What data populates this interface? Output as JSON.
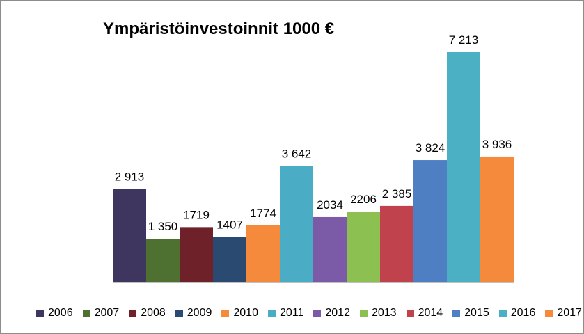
{
  "chart_data": {
    "type": "bar",
    "title": "Ympäristöinvestoinnit 1000 €",
    "xlabel": "",
    "ylabel": "",
    "ylim": [
      0,
      7213
    ],
    "grid": false,
    "legend_position": "bottom",
    "categories": [
      "2006",
      "2007",
      "2008",
      "2009",
      "2010",
      "2011",
      "2012",
      "2013",
      "2014",
      "2015",
      "2016",
      "2017"
    ],
    "values": [
      2913,
      1350,
      1719,
      1407,
      1774,
      3642,
      2034,
      2206,
      2385,
      3824,
      7213,
      3936
    ],
    "data_labels": [
      "2 913",
      "1 350",
      "1719",
      "1407",
      "1774",
      "3 642",
      "2034",
      "2206",
      "2 385",
      "3 824",
      "7 213",
      "3 936"
    ],
    "colors": [
      "#3f3660",
      "#4e7030",
      "#6e2129",
      "#2b4a72",
      "#f58a3c",
      "#4bacc6",
      "#7b5ba8",
      "#8cc152",
      "#c0424d",
      "#4f7fc3",
      "#4bb0c3",
      "#f58a3c"
    ]
  }
}
